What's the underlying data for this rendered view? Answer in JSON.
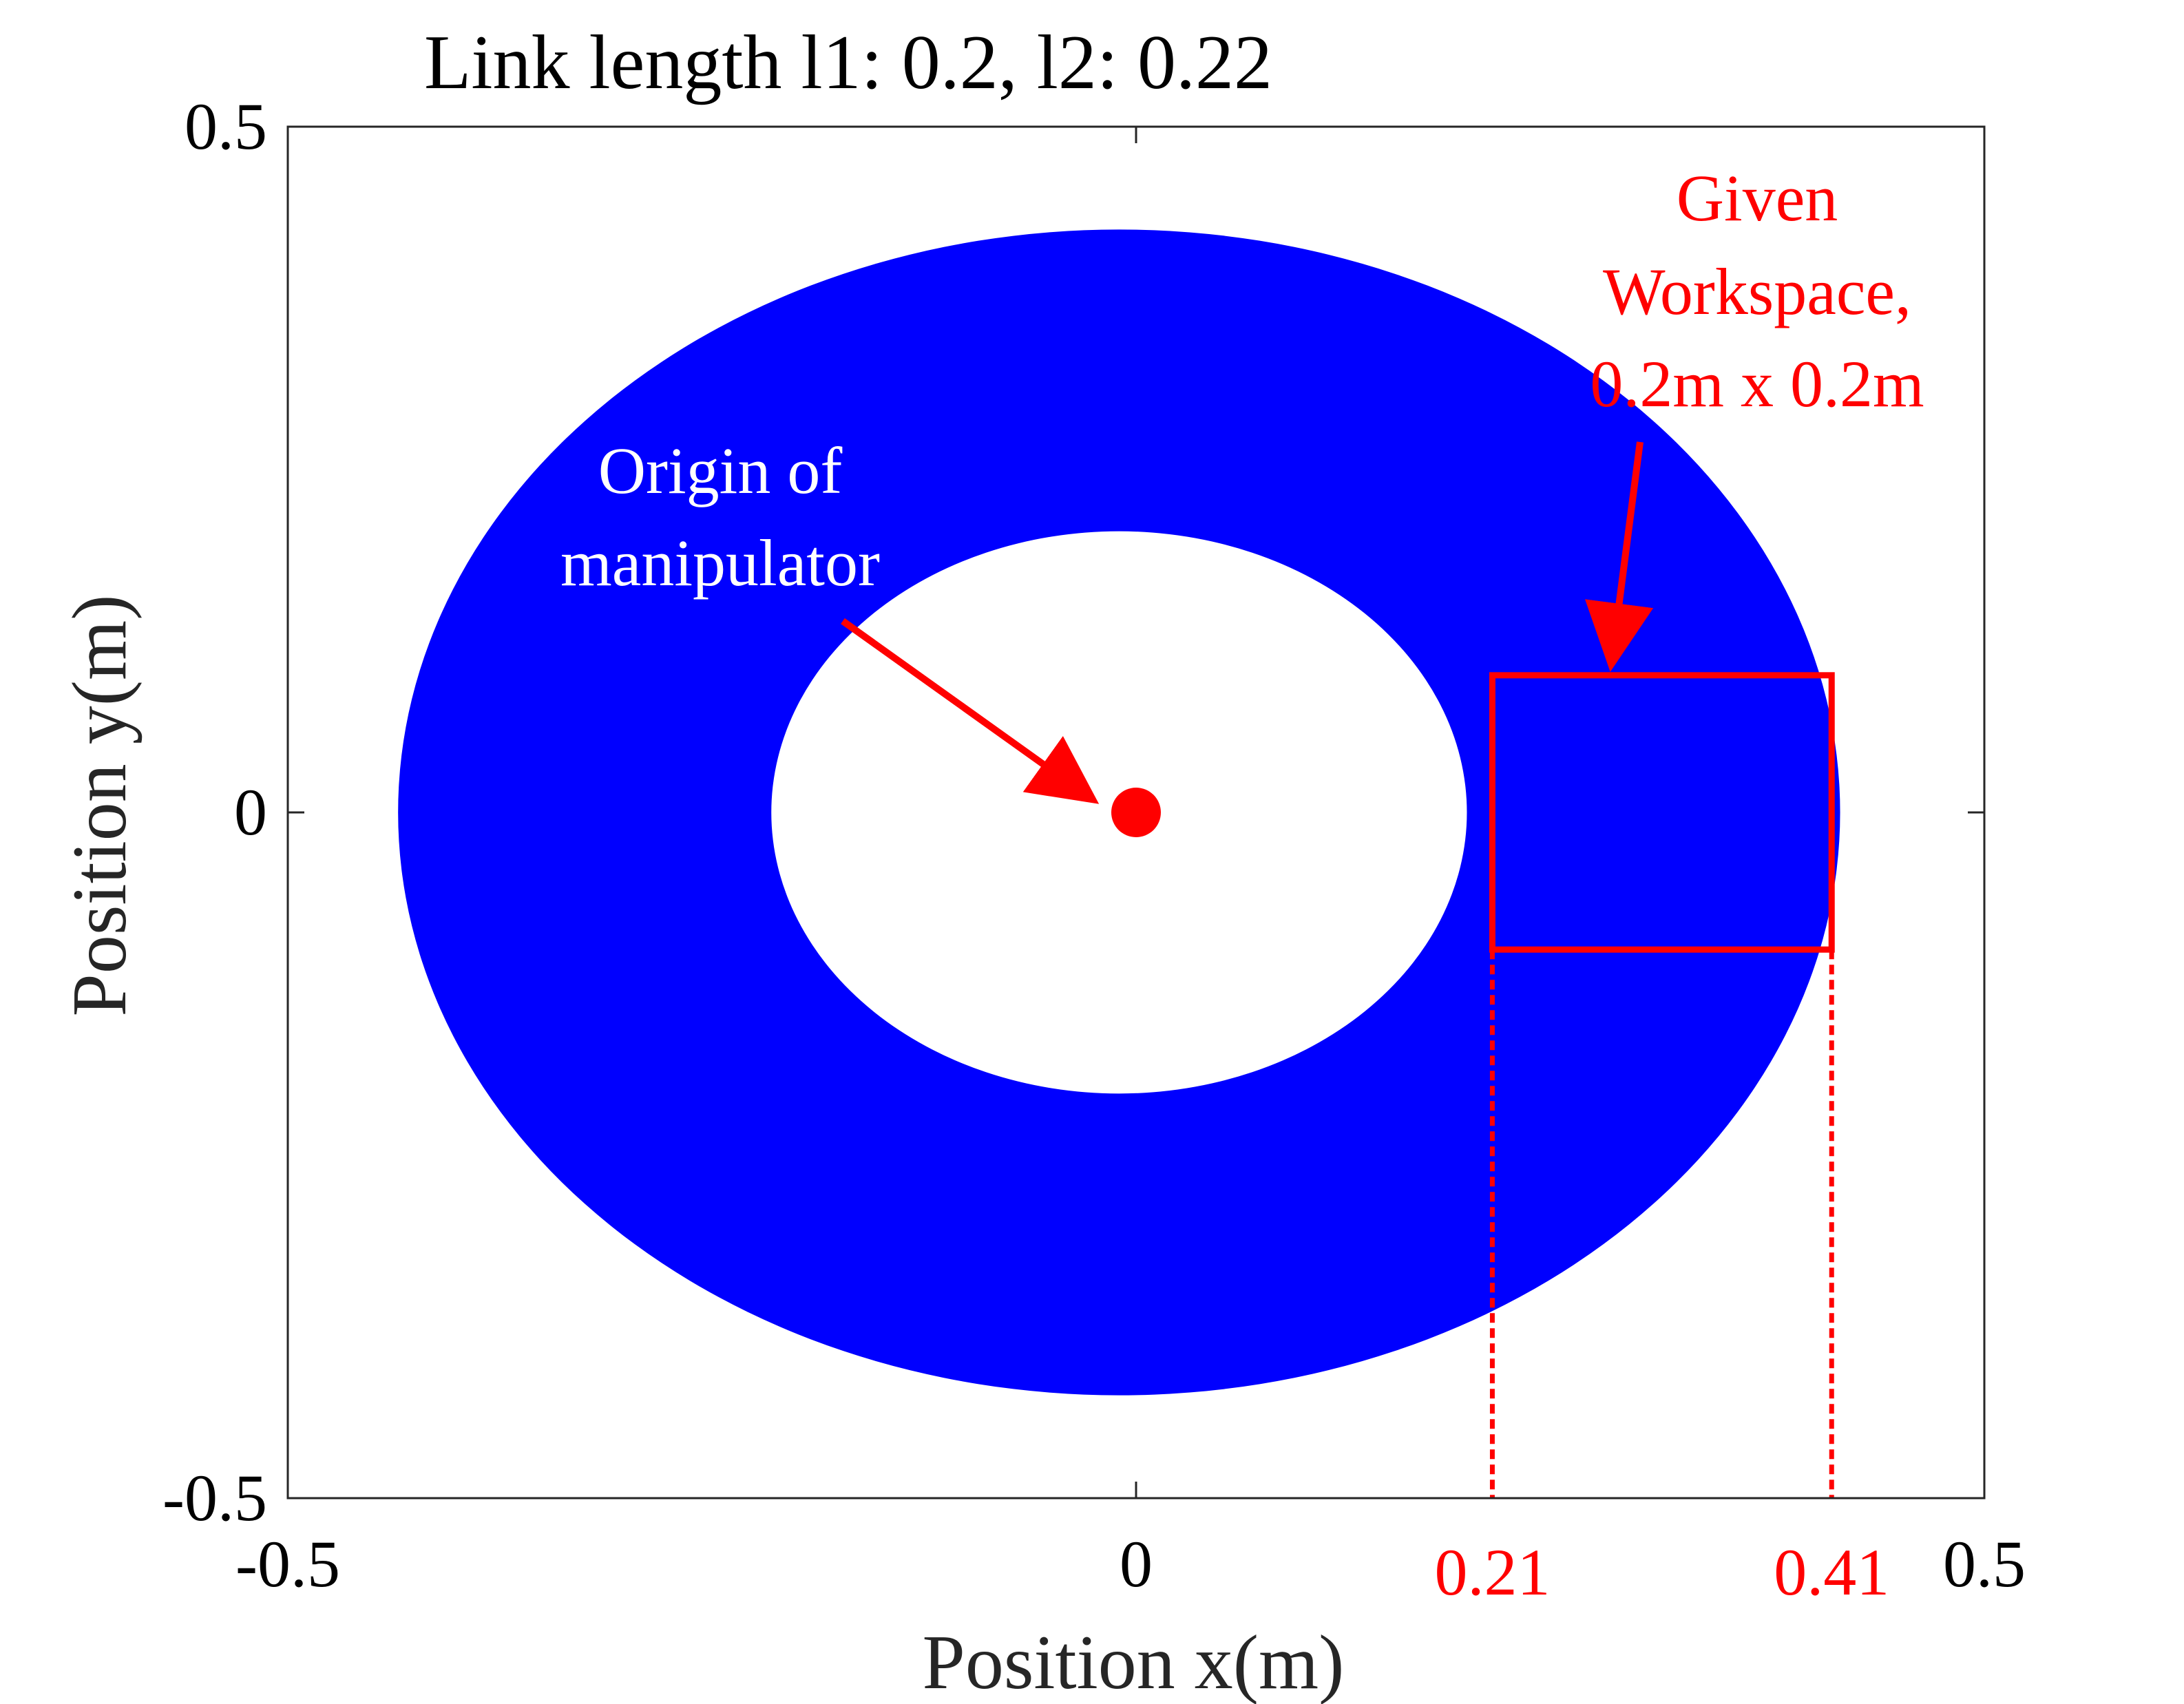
{
  "chart_data": {
    "type": "scatter",
    "title": "Link length l1: 0.2, l2: 0.22",
    "xlabel": "Position x(m)",
    "ylabel": "Position y(m)",
    "xlim": [
      -0.5,
      0.5
    ],
    "ylim": [
      -0.5,
      0.5
    ],
    "x_ticks": [
      {
        "value": -0.5,
        "label": "-0.5"
      },
      {
        "value": 0,
        "label": "0"
      },
      {
        "value": 0.5,
        "label": "0.5"
      }
    ],
    "y_ticks": [
      {
        "value": 0.5,
        "label": "0.5"
      },
      {
        "value": 0,
        "label": "0"
      },
      {
        "value": -0.5,
        "label": "-0.5"
      }
    ],
    "grid": false,
    "workspace_region": {
      "name": "reachable workspace",
      "shape": "annulus",
      "center": [
        -0.01,
        0
      ],
      "outer_radius": {
        "x": 0.425,
        "y": 0.425
      },
      "inner_radius": {
        "x": 0.205,
        "y": 0.205
      },
      "color": "#0000ff"
    },
    "origin_marker": {
      "x": 0,
      "y": 0,
      "color": "#ff0000"
    },
    "given_workspace": {
      "x_min": 0.21,
      "x_max": 0.41,
      "y_min": -0.1,
      "y_max": 0.1,
      "color": "#ff0000"
    },
    "annotations": {
      "origin_label_line1": "Origin of",
      "origin_label_line2": "manipulator",
      "workspace_label_line1": "Given",
      "workspace_label_line2": "Workspace,",
      "workspace_label_line3": "0.2m x 0.2m",
      "x_marker_left": "0.21",
      "x_marker_right": "0.41"
    },
    "colors": {
      "workspace": "#0000ff",
      "annotation": "#ff0000",
      "annotation_text_on_blue": "#ffffff",
      "axis": "#262626"
    }
  }
}
